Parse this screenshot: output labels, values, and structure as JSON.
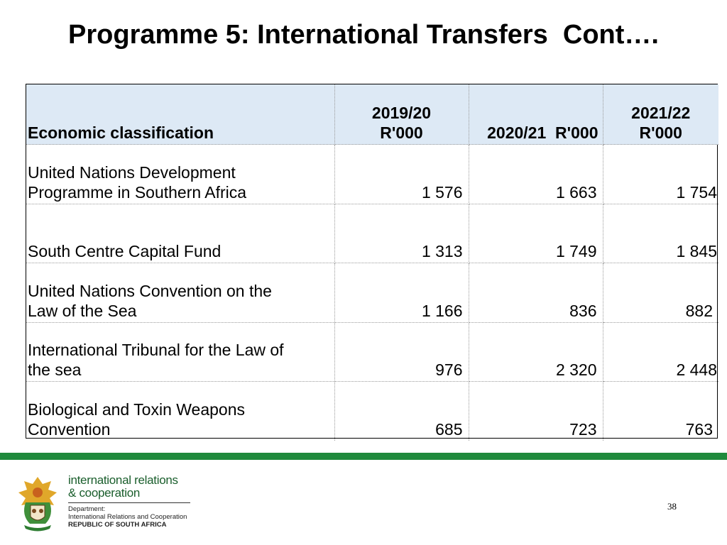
{
  "title": "Programme 5: International Transfers  Cont….",
  "table": {
    "headers": [
      "Economic classification",
      "2019/20\nR'000",
      "2020/21  R'000",
      "2021/22\nR'000"
    ],
    "rows": [
      {
        "label": "United Nations Development\nProgramme in Southern Africa",
        "v2019": "1 576",
        "v2020": "1 663",
        "v2021": "1 754"
      },
      {
        "label": "South Centre Capital Fund",
        "v2019": "1 313",
        "v2020": "1 749",
        "v2021": "1 845"
      },
      {
        "label": "United Nations Convention on the\nLaw of the Sea",
        "v2019": "1 166",
        "v2020": "836",
        "v2021": "882"
      },
      {
        "label": "International Tribunal for the Law of\nthe sea",
        "v2019": "976",
        "v2020": "2 320",
        "v2021": "2 448"
      },
      {
        "label": "Biological and Toxin Weapons\nConvention",
        "v2019": "685",
        "v2020": "723",
        "v2021": "763"
      }
    ]
  },
  "footer": {
    "brand_line1": "international relations",
    "brand_line2": "& cooperation",
    "dept_label": "Department:",
    "dept_name": "International Relations and Cooperation",
    "country": "REPUBLIC OF SOUTH AFRICA",
    "page_number": "38",
    "accent_color": "#1f8a3c"
  }
}
